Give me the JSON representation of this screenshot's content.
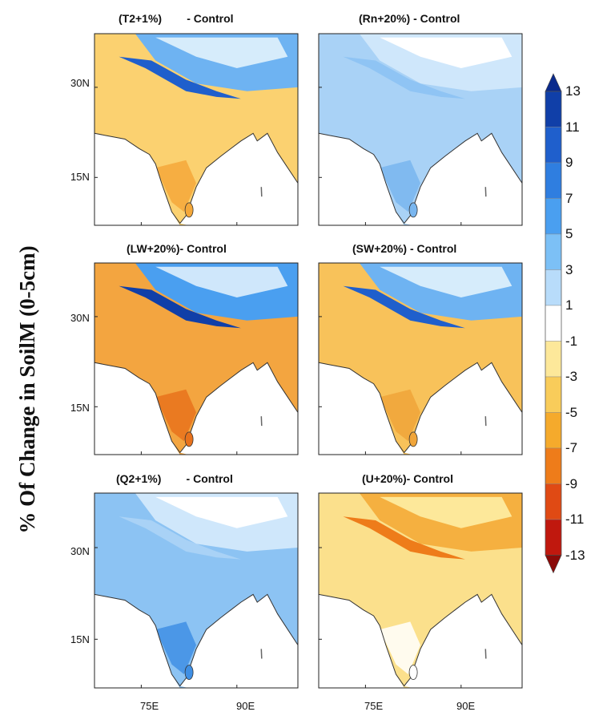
{
  "figure": {
    "y_axis_title": "% Of Change in SoilM (0-5cm)",
    "panels": [
      {
        "title_a": "(T2+1%)",
        "title_b": "- Control",
        "signal": "mixed-dry",
        "mean_pct": -4
      },
      {
        "title_a": "(Rn+20%)",
        "title_b": "- Control",
        "signal": "wet",
        "mean_pct": 3
      },
      {
        "title_a": "(LW+20%)",
        "title_b": "- Control",
        "signal": "mixed-dry",
        "mean_pct": -7
      },
      {
        "title_a": "(SW+20%)",
        "title_b": "- Control",
        "signal": "mixed-dry",
        "mean_pct": -4
      },
      {
        "title_a": "(Q2+1%)",
        "title_b": "- Control",
        "signal": "wet",
        "mean_pct": 4
      },
      {
        "title_a": "(U+20%)",
        "title_b": "- Control",
        "signal": "dry-light",
        "mean_pct": -1
      }
    ],
    "lat_ticks": [
      "30N",
      "15N"
    ],
    "lon_ticks": [
      "75E",
      "90E"
    ],
    "colorbar": {
      "labels": [
        "13",
        "11",
        "9",
        "7",
        "5",
        "3",
        "1",
        "-1",
        "-3",
        "-5",
        "-7",
        "-9",
        "-11",
        "-13"
      ],
      "colors": [
        "#0a2a8c",
        "#103fa8",
        "#1f5fcc",
        "#2f7ee0",
        "#4a9ff0",
        "#7cc0f6",
        "#b8dcfa",
        "#ffffff",
        "#fde89a",
        "#f9cc5a",
        "#f5aa2c",
        "#ee7c1a",
        "#e04a14",
        "#c0180e",
        "#8a0a08"
      ]
    }
  }
}
